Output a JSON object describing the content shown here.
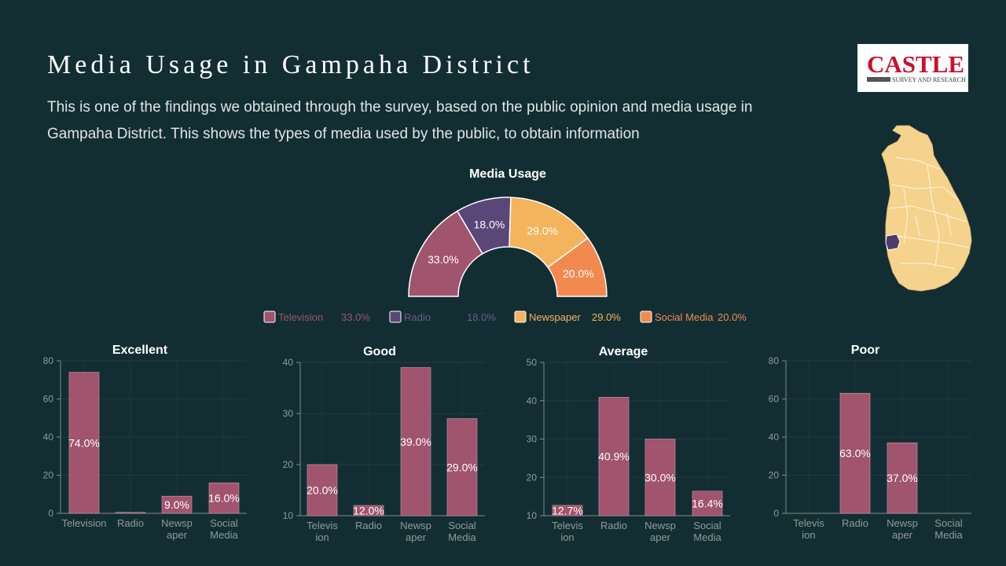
{
  "header": {
    "title": "Media Usage in Gampaha District",
    "subtitle": "This is one of the findings we obtained through the survey, based on the public opinion and media usage in Gampaha District. This shows the types of media used by the public, to obtain information"
  },
  "logo": {
    "name": "CASTLE",
    "tagline": "SURVEY AND RESEARCH"
  },
  "map": {
    "icon": "sri-lanka-map-icon",
    "highlight_color": "#4e3b6b",
    "base_color": "#f6d38c"
  },
  "chart_data": [
    {
      "type": "pie",
      "style": "semi-donut",
      "title": "Media Usage",
      "categories": [
        "Television",
        "Radio",
        "Newspaper",
        "Social Media"
      ],
      "values": [
        33.0,
        18.0,
        29.0,
        20.0
      ],
      "labels": [
        "33.0%",
        "18.0%",
        "29.0%",
        "20.0%"
      ],
      "colors": [
        "#a0546d",
        "#5a4677",
        "#f4b45d",
        "#f28a50"
      ],
      "legend_position": "bottom"
    },
    {
      "type": "bar",
      "title": "Excellent",
      "categories": [
        "Television",
        "Radio",
        "Newsp aper",
        "Social Media"
      ],
      "values": [
        74.0,
        0.5,
        9.0,
        16.0
      ],
      "labels": [
        "74.0%",
        "",
        "9.0%",
        "16.0%"
      ],
      "yticks": [
        "0",
        "20",
        "40",
        "60",
        "80"
      ],
      "ylim": [
        0,
        80
      ],
      "color": "#a0546d"
    },
    {
      "type": "bar",
      "title": "Good",
      "categories": [
        "Televis ion",
        "Radio",
        "Newsp aper",
        "Social Media"
      ],
      "values": [
        20.0,
        12.0,
        39.0,
        29.0
      ],
      "labels": [
        "20.0%",
        "12.0%",
        "39.0%",
        "29.0%"
      ],
      "yticks": [
        "10",
        "20",
        "30",
        "40"
      ],
      "ylim": [
        10,
        40
      ],
      "color": "#a0546d"
    },
    {
      "type": "bar",
      "title": "Average",
      "categories": [
        "Televis ion",
        "Radio",
        "Newsp aper",
        "Social Media"
      ],
      "values": [
        12.7,
        40.9,
        30.0,
        16.4
      ],
      "labels": [
        "12.7%",
        "40.9%",
        "30.0%",
        "16.4%"
      ],
      "yticks": [
        "10",
        "20",
        "30",
        "40",
        "50"
      ],
      "ylim": [
        10,
        50
      ],
      "color": "#a0546d"
    },
    {
      "type": "bar",
      "title": "Poor",
      "categories": [
        "Televis ion",
        "Radio",
        "Newsp aper",
        "Social Media"
      ],
      "values": [
        0,
        63.0,
        37.0,
        0
      ],
      "labels": [
        "",
        "63.0%",
        "37.0%",
        ""
      ],
      "yticks": [
        "0",
        "20",
        "40",
        "60",
        "80"
      ],
      "ylim": [
        0,
        80
      ],
      "color": "#a0546d"
    }
  ]
}
